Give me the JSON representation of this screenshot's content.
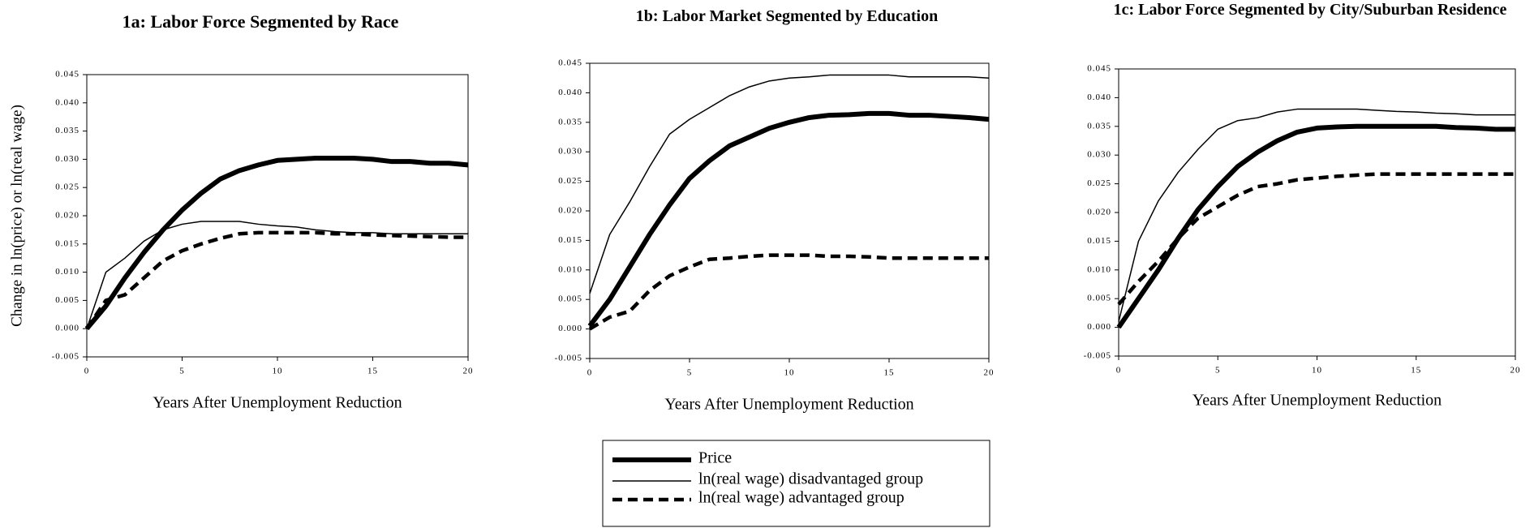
{
  "chart_data": [
    {
      "type": "line",
      "title": "1a: Labor Force Segmented by Race",
      "ylabel": "Change in ln(price) or ln(real wage)",
      "xlabel": "Years After Unemployment Reduction",
      "x": [
        0,
        1,
        2,
        3,
        4,
        5,
        6,
        7,
        8,
        9,
        10,
        11,
        12,
        13,
        14,
        15,
        16,
        17,
        18,
        19,
        20
      ],
      "xlim": [
        0,
        20
      ],
      "xticks": [
        0,
        5,
        10,
        15,
        20
      ],
      "ylim": [
        -0.005,
        0.045
      ],
      "yticks": [
        {
          "value": -0.005,
          "label": "-0.005"
        },
        {
          "value": 0,
          "label": "0.000"
        },
        {
          "value": 0.005,
          "label": "0.005"
        },
        {
          "value": 0.01,
          "label": "0.010"
        },
        {
          "value": 0.015,
          "label": "0.015"
        },
        {
          "value": 0.02,
          "label": "0.020"
        },
        {
          "value": 0.025,
          "label": "0.025"
        },
        {
          "value": 0.03,
          "label": "0.030"
        },
        {
          "value": 0.035,
          "label": "0.035"
        },
        {
          "value": 0.04,
          "label": "0.040"
        },
        {
          "value": 0.045,
          "label": "0.045"
        }
      ],
      "series": [
        {
          "style": "thick",
          "color": "#000000",
          "values": [
            0,
            0.004,
            0.009,
            0.0135,
            0.0175,
            0.021,
            0.024,
            0.0265,
            0.028,
            0.029,
            0.0298,
            0.03,
            0.0302,
            0.0302,
            0.0302,
            0.03,
            0.0296,
            0.0296,
            0.0293,
            0.0293,
            0.029
          ]
        },
        {
          "style": "thin",
          "color": "#000000",
          "values": [
            0,
            0.01,
            0.0125,
            0.0155,
            0.0175,
            0.0185,
            0.019,
            0.019,
            0.019,
            0.0185,
            0.0182,
            0.018,
            0.0175,
            0.0172,
            0.017,
            0.017,
            0.0168,
            0.0168,
            0.0168,
            0.0168,
            0.0168
          ]
        },
        {
          "style": "dashed",
          "color": "#000000",
          "values": [
            0,
            0.005,
            0.006,
            0.009,
            0.012,
            0.0138,
            0.015,
            0.016,
            0.0168,
            0.017,
            0.017,
            0.017,
            0.017,
            0.0168,
            0.0168,
            0.0166,
            0.0165,
            0.0164,
            0.0163,
            0.0162,
            0.0162
          ]
        }
      ]
    },
    {
      "type": "line",
      "title": "1b: Labor Market Segmented  by Education",
      "xlabel": "Years After Unemployment Reduction",
      "x": [
        0,
        1,
        2,
        3,
        4,
        5,
        6,
        7,
        8,
        9,
        10,
        11,
        12,
        13,
        14,
        15,
        16,
        17,
        18,
        19,
        20
      ],
      "xlim": [
        0,
        20
      ],
      "xticks": [
        0,
        5,
        10,
        15,
        20
      ],
      "ylim": [
        -0.005,
        0.045
      ],
      "yticks": [
        {
          "value": -0.005,
          "label": "-0.005"
        },
        {
          "value": 0,
          "label": "0.000"
        },
        {
          "value": 0.005,
          "label": "0.005"
        },
        {
          "value": 0.01,
          "label": "0.010"
        },
        {
          "value": 0.015,
          "label": "0.015"
        },
        {
          "value": 0.02,
          "label": "0.020"
        },
        {
          "value": 0.025,
          "label": "0.025"
        },
        {
          "value": 0.03,
          "label": "0.030"
        },
        {
          "value": 0.035,
          "label": "0.035"
        },
        {
          "value": 0.04,
          "label": "0.040"
        },
        {
          "value": 0.045,
          "label": "0.045"
        }
      ],
      "series": [
        {
          "style": "thick",
          "color": "#000000",
          "values": [
            0.0005,
            0.005,
            0.0105,
            0.016,
            0.021,
            0.0255,
            0.0285,
            0.031,
            0.0325,
            0.034,
            0.035,
            0.0358,
            0.0362,
            0.0363,
            0.0365,
            0.0365,
            0.0362,
            0.0362,
            0.036,
            0.0358,
            0.0355
          ]
        },
        {
          "style": "thin",
          "color": "#000000",
          "values": [
            0.006,
            0.016,
            0.0215,
            0.0275,
            0.033,
            0.0355,
            0.0375,
            0.0395,
            0.041,
            0.042,
            0.0425,
            0.0427,
            0.043,
            0.043,
            0.043,
            0.043,
            0.0427,
            0.0427,
            0.0427,
            0.0427,
            0.0425
          ]
        },
        {
          "style": "dashed",
          "color": "#000000",
          "values": [
            0,
            0.002,
            0.003,
            0.0065,
            0.009,
            0.0105,
            0.0118,
            0.012,
            0.0123,
            0.0125,
            0.0125,
            0.0125,
            0.0123,
            0.0123,
            0.0122,
            0.012,
            0.012,
            0.012,
            0.012,
            0.012,
            0.012
          ]
        }
      ]
    },
    {
      "type": "line",
      "title": "1c: Labor Force Segmented by City/Suburban Residence",
      "xlabel": "Years After Unemployment Reduction",
      "x": [
        0,
        1,
        2,
        3,
        4,
        5,
        6,
        7,
        8,
        9,
        10,
        11,
        12,
        13,
        14,
        15,
        16,
        17,
        18,
        19,
        20
      ],
      "xlim": [
        0,
        20
      ],
      "xticks": [
        0,
        5,
        10,
        15,
        20
      ],
      "ylim": [
        -0.005,
        0.045
      ],
      "yticks": [
        {
          "value": -0.005,
          "label": "-0.005"
        },
        {
          "value": 0,
          "label": "0.000"
        },
        {
          "value": 0.005,
          "label": "0.005"
        },
        {
          "value": 0.01,
          "label": "0.010"
        },
        {
          "value": 0.015,
          "label": "0.015"
        },
        {
          "value": 0.02,
          "label": "0.020"
        },
        {
          "value": 0.025,
          "label": "0.025"
        },
        {
          "value": 0.03,
          "label": "0.030"
        },
        {
          "value": 0.035,
          "label": "0.035"
        },
        {
          "value": 0.04,
          "label": "0.040"
        },
        {
          "value": 0.045,
          "label": "0.045"
        }
      ],
      "series": [
        {
          "style": "thick",
          "color": "#000000",
          "values": [
            0,
            0.005,
            0.01,
            0.0155,
            0.0205,
            0.0245,
            0.028,
            0.0305,
            0.0325,
            0.034,
            0.0347,
            0.0349,
            0.035,
            0.035,
            0.035,
            0.035,
            0.035,
            0.0348,
            0.0347,
            0.0345,
            0.0345
          ]
        },
        {
          "style": "thin",
          "color": "#000000",
          "values": [
            0.001,
            0.015,
            0.022,
            0.027,
            0.031,
            0.0345,
            0.036,
            0.0365,
            0.0375,
            0.038,
            0.038,
            0.038,
            0.038,
            0.0378,
            0.0376,
            0.0375,
            0.0373,
            0.0372,
            0.037,
            0.037,
            0.037
          ]
        },
        {
          "style": "dashed",
          "color": "#000000",
          "values": [
            0.004,
            0.008,
            0.0115,
            0.0155,
            0.019,
            0.021,
            0.023,
            0.0245,
            0.025,
            0.0257,
            0.026,
            0.0263,
            0.0265,
            0.0267,
            0.0267,
            0.0267,
            0.0267,
            0.0267,
            0.0267,
            0.0267,
            0.0267
          ]
        }
      ]
    }
  ],
  "legend": [
    {
      "label": "Price",
      "style": "thick"
    },
    {
      "label": "ln(real wage) disadvantaged group",
      "style": "thin"
    },
    {
      "label": "ln(real wage) advantaged group",
      "style": "dashed"
    }
  ]
}
